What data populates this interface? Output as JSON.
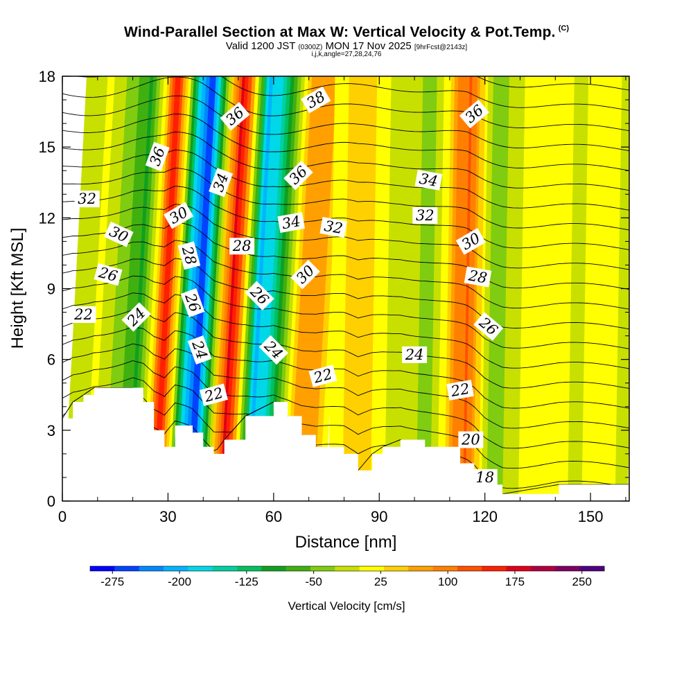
{
  "chart_data": {
    "type": "contour-section",
    "title": "Wind-Parallel Section at Max W: Vertical Velocity & Pot.Temp.",
    "title_mark": "(C)",
    "subtitle_main_a": "Valid 1200 JST",
    "subtitle_main_small": "(0300Z)",
    "subtitle_main_b": "MON 17 Nov 2025",
    "subtitle_run": "[9hrFcst@2143z]",
    "subtitle_indices": "i,j,k,angle=27,28,24,76",
    "xlabel": "Distance [nm]",
    "ylabel": "Height [Kft MSL]",
    "xlim": [
      0,
      161
    ],
    "ylim": [
      0,
      18
    ],
    "x_ticks": [
      "0",
      "30",
      "60",
      "90",
      "120",
      "150"
    ],
    "y_ticks": [
      "0",
      "3",
      "6",
      "9",
      "12",
      "15",
      "18"
    ],
    "colorbar": {
      "label": "Vertical Velocity [cm/s]",
      "tick_labels": [
        "-275",
        "-200",
        "-125",
        "-50",
        "25",
        "100",
        "175",
        "250"
      ],
      "colors": [
        "#0000ff",
        "#0044ff",
        "#0088ff",
        "#00b4ff",
        "#00d8e8",
        "#00d0a0",
        "#00c060",
        "#10a020",
        "#40b010",
        "#80cc10",
        "#c8e000",
        "#ffff00",
        "#ffd000",
        "#ffa000",
        "#ff8000",
        "#ff5000",
        "#ff2000",
        "#e0001a",
        "#b00040",
        "#800060",
        "#500080"
      ]
    },
    "w_bands": [
      {
        "x": 2,
        "w": -25
      },
      {
        "x": 10,
        "w": 10
      },
      {
        "x": 17,
        "w": -60
      },
      {
        "x": 21,
        "w": -90
      },
      {
        "x": 25,
        "w": 40
      },
      {
        "x": 28,
        "w": 180
      },
      {
        "x": 31,
        "w": 30
      },
      {
        "x": 34,
        "w": -150
      },
      {
        "x": 38,
        "w": -275
      },
      {
        "x": 41,
        "w": -100
      },
      {
        "x": 44,
        "w": 60
      },
      {
        "x": 47,
        "w": 190
      },
      {
        "x": 51,
        "w": 0
      },
      {
        "x": 54,
        "w": -200
      },
      {
        "x": 58,
        "w": -160
      },
      {
        "x": 62,
        "w": -40
      },
      {
        "x": 66,
        "w": 60
      },
      {
        "x": 70,
        "w": 90
      },
      {
        "x": 76,
        "w": 20
      },
      {
        "x": 84,
        "w": 50
      },
      {
        "x": 92,
        "w": 5
      },
      {
        "x": 100,
        "w": -20
      },
      {
        "x": 104,
        "w": -50
      },
      {
        "x": 108,
        "w": 20
      },
      {
        "x": 112,
        "w": 100
      },
      {
        "x": 115,
        "w": 120
      },
      {
        "x": 118,
        "w": 50
      },
      {
        "x": 121,
        "w": -30
      },
      {
        "x": 124,
        "w": -40
      },
      {
        "x": 130,
        "w": 5
      },
      {
        "x": 138,
        "w": 30
      },
      {
        "x": 146,
        "w": -5
      },
      {
        "x": 154,
        "w": 20
      },
      {
        "x": 161,
        "w": -10
      }
    ],
    "terrain_height_kft": [
      {
        "x": 0,
        "h": 3.5
      },
      {
        "x": 3,
        "h": 4.2
      },
      {
        "x": 6,
        "h": 4.5
      },
      {
        "x": 9,
        "h": 4.8
      },
      {
        "x": 20,
        "h": 4.8
      },
      {
        "x": 23,
        "h": 4.2
      },
      {
        "x": 26,
        "h": 3.0
      },
      {
        "x": 29,
        "h": 2.3
      },
      {
        "x": 32,
        "h": 3.2
      },
      {
        "x": 37,
        "h": 2.9
      },
      {
        "x": 40,
        "h": 2.3
      },
      {
        "x": 43,
        "h": 2.0
      },
      {
        "x": 46,
        "h": 2.6
      },
      {
        "x": 52,
        "h": 3.6
      },
      {
        "x": 60,
        "h": 4.2
      },
      {
        "x": 64,
        "h": 3.6
      },
      {
        "x": 68,
        "h": 2.8
      },
      {
        "x": 72,
        "h": 2.3
      },
      {
        "x": 80,
        "h": 2.0
      },
      {
        "x": 84,
        "h": 1.3
      },
      {
        "x": 88,
        "h": 2.0
      },
      {
        "x": 91,
        "h": 2.3
      },
      {
        "x": 96,
        "h": 2.6
      },
      {
        "x": 103,
        "h": 2.3
      },
      {
        "x": 113,
        "h": 1.6
      },
      {
        "x": 117,
        "h": 1.3
      },
      {
        "x": 120,
        "h": 0.7
      },
      {
        "x": 125,
        "h": 0.3
      },
      {
        "x": 141,
        "h": 0.7
      },
      {
        "x": 161,
        "h": 0.7
      }
    ],
    "theta_levels": [
      17,
      18,
      19,
      20,
      21,
      22,
      23,
      24,
      25,
      26,
      27,
      28,
      29,
      30,
      31,
      32,
      33,
      34,
      35,
      36,
      37,
      38
    ],
    "contour_labels": [
      {
        "text": "32",
        "x": 7,
        "y": 12.8,
        "angle": 0
      },
      {
        "text": "30",
        "x": 16,
        "y": 11.3,
        "angle": 25
      },
      {
        "text": "26",
        "x": 13,
        "y": 9.6,
        "angle": 15
      },
      {
        "text": "22",
        "x": 6,
        "y": 7.9,
        "angle": 0
      },
      {
        "text": "24",
        "x": 21,
        "y": 7.8,
        "angle": -45
      },
      {
        "text": "36",
        "x": 27,
        "y": 14.6,
        "angle": -70
      },
      {
        "text": "30",
        "x": 33,
        "y": 12.1,
        "angle": -30
      },
      {
        "text": "28",
        "x": 36,
        "y": 10.4,
        "angle": 75
      },
      {
        "text": "26",
        "x": 37,
        "y": 8.4,
        "angle": 70
      },
      {
        "text": "24",
        "x": 39,
        "y": 6.4,
        "angle": 70
      },
      {
        "text": "22",
        "x": 43,
        "y": 4.5,
        "angle": -15
      },
      {
        "text": "36",
        "x": 49,
        "y": 16.3,
        "angle": -40
      },
      {
        "text": "34",
        "x": 45,
        "y": 13.5,
        "angle": -70
      },
      {
        "text": "28",
        "x": 51,
        "y": 10.8,
        "angle": 0
      },
      {
        "text": "26",
        "x": 56,
        "y": 8.7,
        "angle": 45
      },
      {
        "text": "24",
        "x": 60,
        "y": 6.4,
        "angle": 45
      },
      {
        "text": "34",
        "x": 65,
        "y": 11.8,
        "angle": -10
      },
      {
        "text": "36",
        "x": 67,
        "y": 13.8,
        "angle": -45
      },
      {
        "text": "38",
        "x": 72,
        "y": 17.0,
        "angle": -30
      },
      {
        "text": "32",
        "x": 77,
        "y": 11.6,
        "angle": 10
      },
      {
        "text": "30",
        "x": 69,
        "y": 9.6,
        "angle": -45
      },
      {
        "text": "22",
        "x": 74,
        "y": 5.3,
        "angle": -15
      },
      {
        "text": "34",
        "x": 104,
        "y": 13.6,
        "angle": 10
      },
      {
        "text": "32",
        "x": 103,
        "y": 12.1,
        "angle": 0
      },
      {
        "text": "24",
        "x": 100,
        "y": 6.2,
        "angle": 0
      },
      {
        "text": "22",
        "x": 113,
        "y": 4.7,
        "angle": -10
      },
      {
        "text": "20",
        "x": 116,
        "y": 2.6,
        "angle": 0
      },
      {
        "text": "18",
        "x": 120,
        "y": 1.0,
        "angle": 0
      },
      {
        "text": "30",
        "x": 116,
        "y": 11.0,
        "angle": -30
      },
      {
        "text": "28",
        "x": 118,
        "y": 9.5,
        "angle": 10
      },
      {
        "text": "26",
        "x": 121,
        "y": 7.4,
        "angle": 40
      },
      {
        "text": "36",
        "x": 117,
        "y": 16.4,
        "angle": -40
      }
    ],
    "grid": false,
    "legend": "bottom colorbar"
  }
}
